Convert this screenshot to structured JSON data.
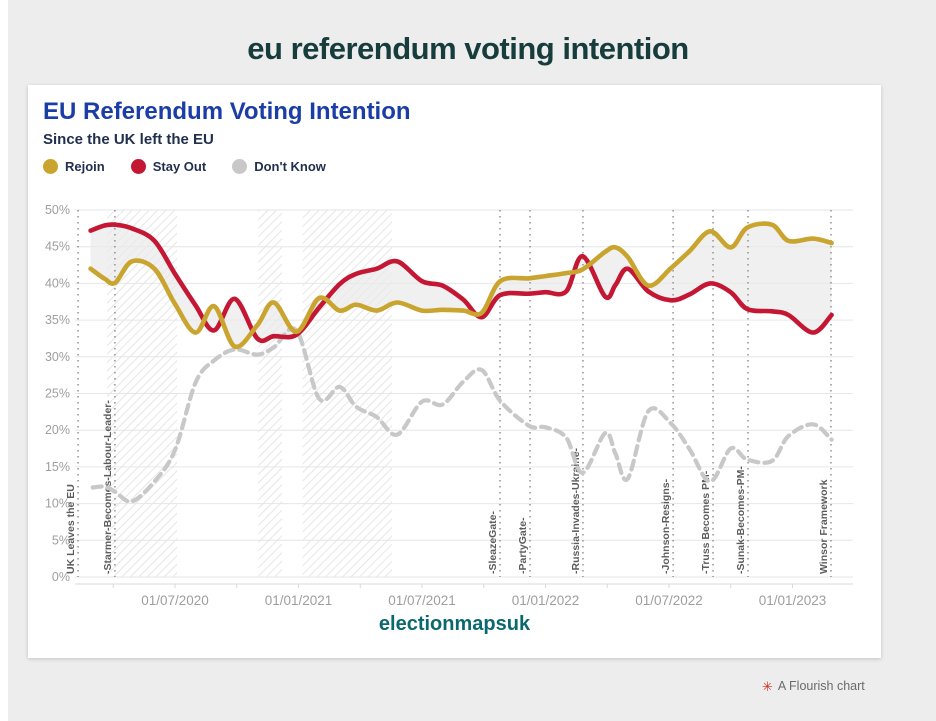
{
  "page": {
    "title": "eu referendum voting intention"
  },
  "card": {
    "title": "EU Referendum Voting Intention",
    "subtitle": "Since the UK left the EU",
    "footer": "electionmapsuk"
  },
  "attribution": {
    "icon": "flourish-flower-icon",
    "text": "A Flourish chart"
  },
  "colors": {
    "rejoin": "#c9a42e",
    "stay_out": "#c41734",
    "dont_know": "#c8c8c8",
    "header_teal": "#163c3c",
    "title_blue": "#1b3da6",
    "footer_teal": "#0b686e"
  },
  "chart_data": {
    "type": "line",
    "title": "EU Referendum Voting Intention",
    "subtitle": "Since the UK left the EU",
    "y_axis": {
      "min": 0,
      "max": 50,
      "step": 5,
      "format": "percent",
      "grid": true
    },
    "x_axis": {
      "unit": "months_since_2020-07-01",
      "minor_tick_step_months": 3,
      "tick_labels": [
        {
          "m": 0,
          "label": "01/07/2020"
        },
        {
          "m": 6,
          "label": "01/01/2021"
        },
        {
          "m": 12,
          "label": "01/07/2021"
        },
        {
          "m": 18,
          "label": "01/01/2022"
        },
        {
          "m": 24,
          "label": "01/07/2022"
        },
        {
          "m": 30,
          "label": "01/01/2023"
        }
      ]
    },
    "legend_position": "top-left",
    "fill_between": [
      "Rejoin",
      "Stay Out"
    ],
    "shaded_bands_months": [
      [
        -3.3,
        0.1
      ],
      [
        4.05,
        5.2
      ],
      [
        6.2,
        10.55
      ]
    ],
    "events": [
      {
        "m": -4.71,
        "label": "UK Leaves the EU"
      },
      {
        "m": -2.92,
        "label": "-Starmer-Becomes-Labour-Leader-"
      },
      {
        "m": 15.79,
        "label": "-SleazeGate-"
      },
      {
        "m": 17.25,
        "label": "-PartyGate-"
      },
      {
        "m": 19.82,
        "label": "-Russia-Invades-Ukraine-"
      },
      {
        "m": 24.2,
        "label": "-Johnson-Resigns-"
      },
      {
        "m": 26.14,
        "label": "-Truss Becomes PM-"
      },
      {
        "m": 27.84,
        "label": "-Sunak-Becomes-PM-"
      },
      {
        "m": 31.87,
        "label": "Winsor Framework"
      }
    ],
    "series": [
      {
        "name": "Rejoin",
        "color": "#c9a42e",
        "dash": false,
        "points": [
          [
            -4.1,
            42
          ],
          [
            -3.4,
            40.6
          ],
          [
            -2.9,
            40.1
          ],
          [
            -2.1,
            43
          ],
          [
            -1,
            42
          ],
          [
            0,
            37.2
          ],
          [
            1,
            33.3
          ],
          [
            1.9,
            36.9
          ],
          [
            2.9,
            31.4
          ],
          [
            4,
            34.3
          ],
          [
            4.8,
            37.4
          ],
          [
            5.9,
            33.4
          ],
          [
            7,
            38
          ],
          [
            8,
            36.3
          ],
          [
            8.8,
            37.1
          ],
          [
            9.8,
            36.3
          ],
          [
            10.8,
            37.4
          ],
          [
            12,
            36.3
          ],
          [
            13,
            36.4
          ],
          [
            14,
            36.3
          ],
          [
            14.9,
            36
          ],
          [
            15.8,
            40.3
          ],
          [
            17.2,
            40.7
          ],
          [
            18,
            41
          ],
          [
            19,
            41.4
          ],
          [
            19.8,
            41.9
          ],
          [
            20.9,
            44.3
          ],
          [
            21.4,
            44.9
          ],
          [
            22,
            43.6
          ],
          [
            23,
            39.7
          ],
          [
            24.1,
            42.1
          ],
          [
            25,
            44.4
          ],
          [
            26,
            47.1
          ],
          [
            27,
            44.9
          ],
          [
            27.8,
            47.6
          ],
          [
            29,
            48
          ],
          [
            29.8,
            45.8
          ],
          [
            31,
            46.1
          ],
          [
            31.9,
            45.5
          ]
        ]
      },
      {
        "name": "Stay Out",
        "color": "#c41734",
        "dash": false,
        "points": [
          [
            -4.1,
            47.2
          ],
          [
            -3.4,
            47.9
          ],
          [
            -2.9,
            48
          ],
          [
            -2.1,
            47.5
          ],
          [
            -1,
            45.8
          ],
          [
            0,
            41.3
          ],
          [
            1,
            37
          ],
          [
            1.9,
            33.6
          ],
          [
            2.9,
            37.9
          ],
          [
            4,
            32.5
          ],
          [
            4.8,
            32.8
          ],
          [
            5.9,
            33
          ],
          [
            7,
            36.7
          ],
          [
            8,
            39.9
          ],
          [
            8.8,
            41.3
          ],
          [
            9.8,
            42
          ],
          [
            10.8,
            43
          ],
          [
            12,
            40.3
          ],
          [
            13,
            39.7
          ],
          [
            14,
            37.8
          ],
          [
            14.9,
            35.4
          ],
          [
            15.8,
            38.4
          ],
          [
            17.2,
            38.6
          ],
          [
            18,
            38.8
          ],
          [
            19,
            38.9
          ],
          [
            19.8,
            43.7
          ],
          [
            20.9,
            38.2
          ],
          [
            21.4,
            39.8
          ],
          [
            22,
            42
          ],
          [
            23,
            38.9
          ],
          [
            24.1,
            37.7
          ],
          [
            25,
            38.5
          ],
          [
            26,
            40
          ],
          [
            27,
            38.8
          ],
          [
            27.8,
            36.5
          ],
          [
            29,
            36.2
          ],
          [
            29.8,
            35.7
          ],
          [
            31,
            33.3
          ],
          [
            31.9,
            35.7
          ]
        ]
      },
      {
        "name": "Don't Know",
        "color": "#c8c8c8",
        "dash": true,
        "points": [
          [
            -4,
            12.2
          ],
          [
            -3.4,
            12.3
          ],
          [
            -2.9,
            11.6
          ],
          [
            -2.1,
            10.3
          ],
          [
            -1,
            13
          ],
          [
            0,
            17.3
          ],
          [
            1,
            26.5
          ],
          [
            1.9,
            29.5
          ],
          [
            2.9,
            31
          ],
          [
            4,
            30.3
          ],
          [
            4.8,
            31.3
          ],
          [
            5.9,
            33.6
          ],
          [
            7,
            24.3
          ],
          [
            8,
            25.9
          ],
          [
            8.8,
            23.2
          ],
          [
            9.8,
            21.8
          ],
          [
            10.8,
            19.4
          ],
          [
            12,
            23.9
          ],
          [
            13,
            23.5
          ],
          [
            14,
            26.6
          ],
          [
            14.9,
            28.2
          ],
          [
            15.8,
            24
          ],
          [
            17.2,
            20.6
          ],
          [
            18,
            20.4
          ],
          [
            19,
            19
          ],
          [
            19.8,
            14.2
          ],
          [
            20.9,
            19.6
          ],
          [
            21.4,
            16.8
          ],
          [
            22,
            13.4
          ],
          [
            23,
            22.6
          ],
          [
            24.1,
            20.9
          ],
          [
            25,
            17.4
          ],
          [
            26,
            13
          ],
          [
            27,
            17.5
          ],
          [
            27.8,
            16
          ],
          [
            29,
            15.8
          ],
          [
            29.8,
            19.2
          ],
          [
            31,
            20.8
          ],
          [
            31.9,
            18.7
          ]
        ]
      }
    ]
  }
}
